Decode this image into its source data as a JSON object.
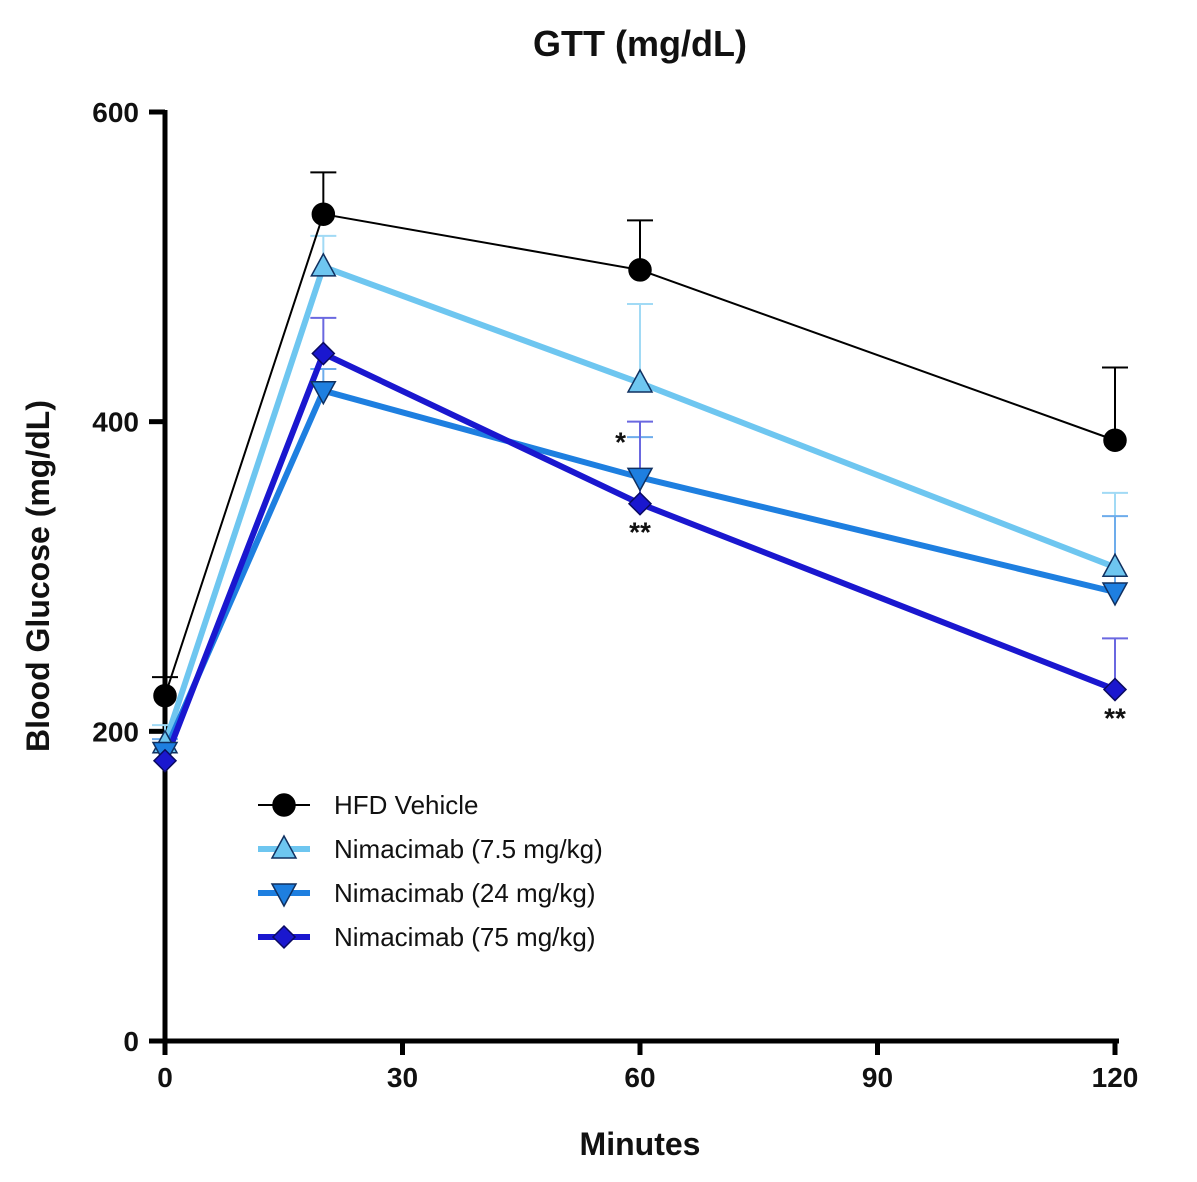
{
  "chart_data": {
    "type": "line",
    "title": "GTT (mg/dL)",
    "xlabel": "Minutes",
    "ylabel": "Blood Glucose (mg/dL)",
    "xlim": [
      0,
      120
    ],
    "ylim": [
      0,
      600
    ],
    "xticks": [
      0,
      30,
      60,
      90,
      120
    ],
    "yticks": [
      0,
      200,
      400,
      600
    ],
    "x": [
      0,
      20,
      60,
      120
    ],
    "legend_position": "lower-left",
    "series": [
      {
        "name": "HFD Vehicle",
        "color": "#000000",
        "marker": "circle",
        "values": [
          223,
          534,
          498,
          388
        ],
        "errors": [
          12,
          27,
          32,
          47
        ]
      },
      {
        "name": "Nimacimab (7.5 mg/kg)",
        "color": "#6EC6F0",
        "marker": "triangle-up",
        "values": [
          192,
          500,
          425,
          306
        ],
        "errors": [
          12,
          20,
          51,
          48
        ]
      },
      {
        "name": "Nimacimab (24 mg/kg)",
        "color": "#1E7FE0",
        "marker": "triangle-down",
        "values": [
          187,
          420,
          364,
          290
        ],
        "errors": [
          8,
          14,
          26,
          49
        ]
      },
      {
        "name": "Nimacimab (75 mg/kg)",
        "color": "#1A17CF",
        "marker": "diamond",
        "values": [
          181,
          444,
          347,
          227
        ],
        "errors": [
          0,
          23,
          53,
          33
        ]
      }
    ],
    "annotations": [
      {
        "text": "*",
        "x": 60,
        "y": 400,
        "anchor": "left-of-point"
      },
      {
        "text": "**",
        "x": 60,
        "y": 347,
        "anchor": "below-point"
      },
      {
        "text": "**",
        "x": 120,
        "y": 227,
        "anchor": "below-point"
      }
    ]
  }
}
